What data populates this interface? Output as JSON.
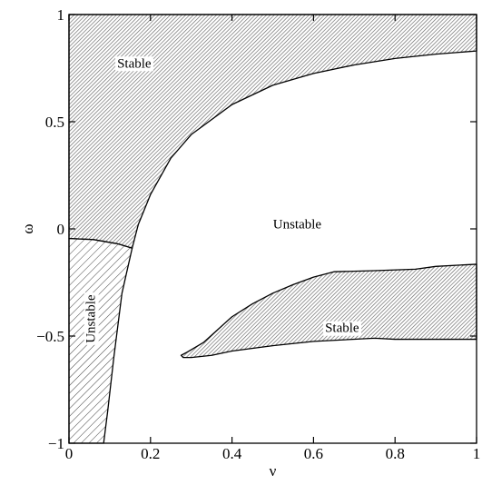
{
  "chart_data": {
    "type": "area",
    "title": "",
    "xlabel": "ν",
    "ylabel": "ω",
    "xlim": [
      0,
      1
    ],
    "ylim": [
      -1,
      1
    ],
    "grid": false,
    "x_ticks": [
      {
        "value": 0,
        "label": "0"
      },
      {
        "value": 0.2,
        "label": "0.2"
      },
      {
        "value": 0.4,
        "label": "0.4"
      },
      {
        "value": 0.6,
        "label": "0.6"
      },
      {
        "value": 0.8,
        "label": "0.8"
      },
      {
        "value": 1,
        "label": "1"
      }
    ],
    "y_ticks": [
      {
        "value": 1,
        "label": "1"
      },
      {
        "value": 0.5,
        "label": "0.5"
      },
      {
        "value": 0,
        "label": "0"
      },
      {
        "value": -0.5,
        "label": "−0.5"
      },
      {
        "value": -1,
        "label": "−1"
      }
    ],
    "regions": [
      {
        "label": "Stable",
        "label_at": [
          0.16,
          0.77
        ],
        "hatch": "dense",
        "boundary": [
          [
            0,
            1
          ],
          [
            1,
            1
          ],
          [
            1,
            0.83
          ],
          [
            0.9,
            0.815
          ],
          [
            0.8,
            0.795
          ],
          [
            0.7,
            0.765
          ],
          [
            0.6,
            0.725
          ],
          [
            0.5,
            0.67
          ],
          [
            0.4,
            0.58
          ],
          [
            0.3,
            0.44
          ],
          [
            0.25,
            0.33
          ],
          [
            0.2,
            0.16
          ],
          [
            0.17,
            0.02
          ],
          [
            0.155,
            -0.09
          ],
          [
            0.12,
            -0.07
          ],
          [
            0.06,
            -0.05
          ],
          [
            0,
            -0.045
          ]
        ]
      },
      {
        "label": "Unstable",
        "label_at": [
          0.055,
          -0.42
        ],
        "label_rotated": true,
        "hatch": "sparse",
        "boundary": [
          [
            0,
            -0.045
          ],
          [
            0.06,
            -0.05
          ],
          [
            0.12,
            -0.07
          ],
          [
            0.155,
            -0.09
          ],
          [
            0.13,
            -0.3
          ],
          [
            0.11,
            -0.6
          ],
          [
            0.095,
            -0.85
          ],
          [
            0.085,
            -1
          ],
          [
            0,
            -1
          ]
        ]
      },
      {
        "label": "Unstable",
        "label_at": [
          0.56,
          0.02
        ],
        "hatch": "none",
        "boundary": []
      },
      {
        "label": "Stable",
        "label_at": [
          0.67,
          -0.465
        ],
        "hatch": "dense",
        "boundary": [
          [
            0.275,
            -0.59
          ],
          [
            0.29,
            -0.575
          ],
          [
            0.33,
            -0.53
          ],
          [
            0.4,
            -0.41
          ],
          [
            0.45,
            -0.35
          ],
          [
            0.5,
            -0.3
          ],
          [
            0.55,
            -0.26
          ],
          [
            0.6,
            -0.225
          ],
          [
            0.65,
            -0.2
          ],
          [
            0.75,
            -0.195
          ],
          [
            0.85,
            -0.188
          ],
          [
            0.9,
            -0.175
          ],
          [
            1,
            -0.165
          ],
          [
            1,
            -0.515
          ],
          [
            0.9,
            -0.515
          ],
          [
            0.8,
            -0.515
          ],
          [
            0.75,
            -0.51
          ],
          [
            0.6,
            -0.525
          ],
          [
            0.5,
            -0.545
          ],
          [
            0.4,
            -0.57
          ],
          [
            0.35,
            -0.59
          ],
          [
            0.3,
            -0.6
          ],
          [
            0.28,
            -0.6
          ]
        ]
      }
    ]
  }
}
